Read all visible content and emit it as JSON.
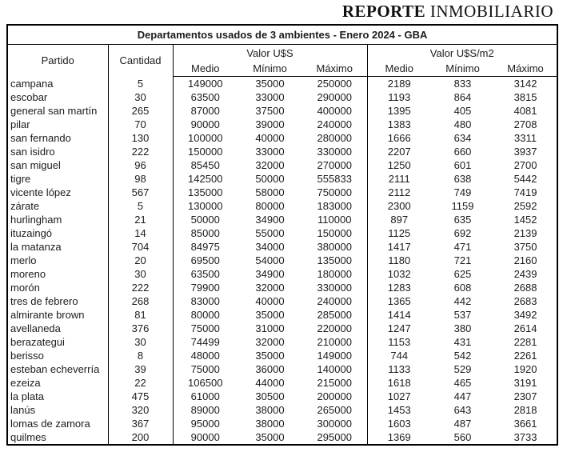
{
  "logo": {
    "bold": "REPORTE",
    "regular": " INMOBILIARIO"
  },
  "table": {
    "title": "Departamentos usados de 3 ambientes - Enero 2024 - GBA",
    "headers": {
      "partido": "Partido",
      "cantidad": "Cantidad",
      "valor_usd": "Valor U$S",
      "valor_usd_m2": "Valor U$S/m2",
      "sub": [
        "Medio",
        "Mínimo",
        "Máximo",
        "Medio",
        "Mínimo",
        "Máximo"
      ]
    },
    "rows": [
      [
        "campana",
        5,
        149000,
        35000,
        250000,
        2189,
        833,
        3142
      ],
      [
        "escobar",
        30,
        63500,
        33000,
        290000,
        1193,
        864,
        3815
      ],
      [
        "general san martín",
        265,
        87000,
        37500,
        400000,
        1395,
        405,
        4081
      ],
      [
        "pilar",
        70,
        90000,
        39000,
        240000,
        1383,
        480,
        2708
      ],
      [
        "san fernando",
        130,
        100000,
        40000,
        280000,
        1666,
        634,
        3311
      ],
      [
        "san isidro",
        222,
        150000,
        33000,
        330000,
        2207,
        660,
        3937
      ],
      [
        "san miguel",
        96,
        85450,
        32000,
        270000,
        1250,
        601,
        2700
      ],
      [
        "tigre",
        98,
        142500,
        50000,
        555833,
        2111,
        638,
        5442
      ],
      [
        "vicente lópez",
        567,
        135000,
        58000,
        750000,
        2112,
        749,
        7419
      ],
      [
        "zárate",
        5,
        130000,
        80000,
        183000,
        2300,
        1159,
        2592
      ],
      [
        "hurlingham",
        21,
        50000,
        34900,
        110000,
        897,
        635,
        1452
      ],
      [
        "ituzaingó",
        14,
        85000,
        55000,
        150000,
        1125,
        692,
        2139
      ],
      [
        "la matanza",
        704,
        84975,
        34000,
        380000,
        1417,
        471,
        3750
      ],
      [
        "merlo",
        20,
        69500,
        54000,
        135000,
        1180,
        721,
        2160
      ],
      [
        "moreno",
        30,
        63500,
        34900,
        180000,
        1032,
        625,
        2439
      ],
      [
        "morón",
        222,
        79900,
        32000,
        330000,
        1283,
        608,
        2688
      ],
      [
        "tres de febrero",
        268,
        83000,
        40000,
        240000,
        1365,
        442,
        2683
      ],
      [
        "almirante brown",
        81,
        80000,
        35000,
        285000,
        1414,
        537,
        3492
      ],
      [
        "avellaneda",
        376,
        75000,
        31000,
        220000,
        1247,
        380,
        2614
      ],
      [
        "berazategui",
        30,
        74499,
        32000,
        210000,
        1153,
        431,
        2281
      ],
      [
        "berisso",
        8,
        48000,
        35000,
        149000,
        744,
        542,
        2261
      ],
      [
        "esteban echeverría",
        39,
        75000,
        36000,
        140000,
        1133,
        529,
        1920
      ],
      [
        "ezeiza",
        22,
        106500,
        44000,
        215000,
        1618,
        465,
        3191
      ],
      [
        "la plata",
        475,
        61000,
        30500,
        200000,
        1027,
        447,
        2307
      ],
      [
        "lanús",
        320,
        89000,
        38000,
        265000,
        1453,
        643,
        2818
      ],
      [
        "lomas de zamora",
        367,
        95000,
        38000,
        300000,
        1603,
        487,
        3661
      ],
      [
        "quilmes",
        200,
        90000,
        35000,
        295000,
        1369,
        560,
        3733
      ]
    ]
  }
}
